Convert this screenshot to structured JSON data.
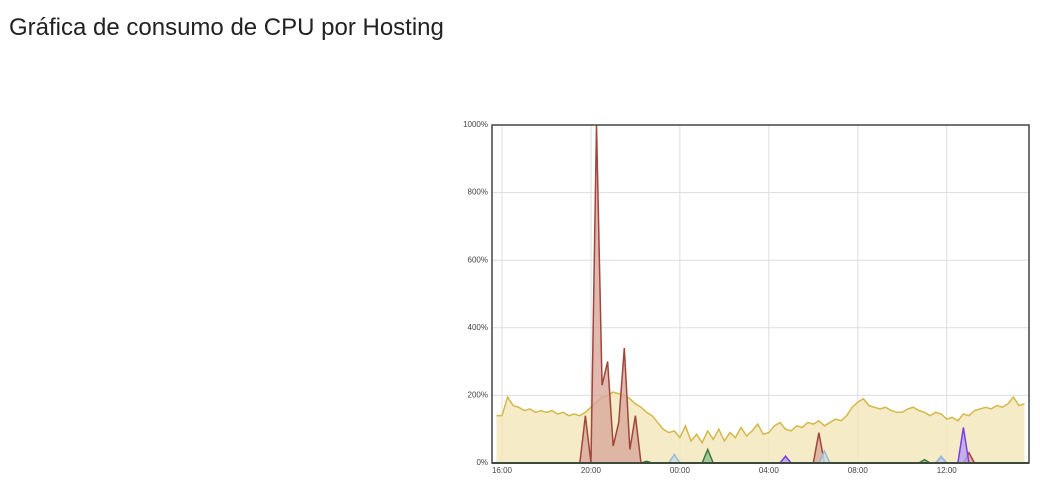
{
  "chart_data": {
    "type": "area",
    "title": "Gráfica de consumo de CPU por Hosting",
    "x": [
      15.75,
      16,
      16.25,
      16.5,
      16.75,
      17,
      17.25,
      17.5,
      17.75,
      18,
      18.25,
      18.5,
      18.75,
      19,
      19.25,
      19.5,
      19.75,
      20,
      20.25,
      20.5,
      20.75,
      21,
      21.25,
      21.5,
      21.75,
      22,
      22.25,
      22.5,
      22.75,
      23,
      23.25,
      23.5,
      23.75,
      24,
      24.25,
      24.5,
      24.75,
      25,
      25.25,
      25.5,
      25.75,
      26,
      26.25,
      26.5,
      26.75,
      27,
      27.25,
      27.5,
      27.75,
      28,
      28.25,
      28.5,
      28.75,
      29,
      29.25,
      29.5,
      29.75,
      30,
      30.25,
      30.5,
      30.75,
      31,
      31.25,
      31.5,
      31.75,
      32,
      32.25,
      32.5,
      32.75,
      33,
      33.25,
      33.5,
      33.75,
      34,
      34.25,
      34.5,
      34.75,
      35,
      35.25,
      35.5,
      35.75,
      36,
      36.25,
      36.5,
      36.75,
      37,
      37.25,
      37.5,
      37.75,
      38,
      38.25,
      38.5,
      38.75,
      39,
      39.25,
      39.5
    ],
    "xlim": [
      15.55,
      39.7
    ],
    "xticks": [
      {
        "value": 16,
        "label": "16:00"
      },
      {
        "value": 20,
        "label": "20:00"
      },
      {
        "value": 24,
        "label": "00:00"
      },
      {
        "value": 28,
        "label": "04:00"
      },
      {
        "value": 32,
        "label": "08:00"
      },
      {
        "value": 36,
        "label": "12:00"
      }
    ],
    "ylim": [
      0,
      1000
    ],
    "yticks": [
      {
        "value": 0,
        "label": "0%"
      },
      {
        "value": 200,
        "label": "200%"
      },
      {
        "value": 400,
        "label": "400%"
      },
      {
        "value": 600,
        "label": "600%"
      },
      {
        "value": 800,
        "label": "800%"
      },
      {
        "value": 1000,
        "label": "1000%"
      }
    ],
    "grid": true,
    "series": [
      {
        "color": "#d4b84a",
        "fill": "#f3e6b8",
        "values": [
          140,
          140,
          195,
          170,
          165,
          155,
          160,
          150,
          155,
          150,
          155,
          145,
          150,
          140,
          145,
          140,
          150,
          165,
          180,
          195,
          200,
          210,
          205,
          200,
          190,
          175,
          165,
          150,
          140,
          120,
          100,
          90,
          95,
          75,
          110,
          65,
          85,
          60,
          95,
          70,
          100,
          65,
          90,
          75,
          105,
          80,
          95,
          115,
          85,
          90,
          110,
          120,
          100,
          95,
          110,
          105,
          120,
          115,
          125,
          110,
          120,
          130,
          125,
          140,
          165,
          180,
          190,
          170,
          165,
          160,
          165,
          155,
          150,
          150,
          160,
          165,
          155,
          150,
          140,
          150,
          145,
          130,
          135,
          125,
          145,
          140,
          155,
          160,
          165,
          160,
          170,
          165,
          175,
          195,
          170,
          175
        ]
      },
      {
        "color": "#a0463c",
        "fill": "#d9a79a",
        "values": [
          0,
          0,
          0,
          0,
          0,
          0,
          0,
          0,
          0,
          0,
          0,
          0,
          0,
          0,
          0,
          0,
          140,
          0,
          1000,
          230,
          300,
          50,
          120,
          340,
          40,
          140,
          0,
          0,
          0,
          0,
          0,
          0,
          0,
          0,
          0,
          0,
          0,
          0,
          0,
          0,
          0,
          0,
          0,
          0,
          0,
          0,
          0,
          0,
          0,
          0,
          0,
          0,
          0,
          0,
          0,
          0,
          0,
          0,
          90,
          0,
          0,
          0,
          0,
          0,
          0,
          0,
          0,
          0,
          0,
          0,
          0,
          0,
          0,
          0,
          0,
          0,
          0,
          0,
          0,
          0,
          0,
          0,
          0,
          0,
          0,
          30,
          0,
          0,
          0,
          0,
          0,
          0,
          0,
          0,
          0,
          0
        ]
      },
      {
        "color": "#7b3fe4",
        "fill": "#b9a0f0",
        "values": [
          0,
          0,
          0,
          0,
          0,
          0,
          0,
          0,
          0,
          0,
          0,
          0,
          0,
          0,
          0,
          0,
          0,
          0,
          0,
          0,
          0,
          0,
          0,
          0,
          0,
          0,
          0,
          0,
          0,
          0,
          0,
          0,
          0,
          0,
          0,
          0,
          0,
          0,
          0,
          0,
          0,
          0,
          0,
          0,
          0,
          0,
          0,
          0,
          0,
          0,
          0,
          0,
          20,
          0,
          0,
          0,
          0,
          0,
          0,
          0,
          0,
          0,
          0,
          0,
          0,
          0,
          0,
          0,
          0,
          0,
          0,
          0,
          0,
          0,
          0,
          0,
          0,
          0,
          0,
          0,
          15,
          0,
          0,
          0,
          105,
          0,
          0,
          0,
          0,
          0,
          0,
          0,
          0,
          0,
          0,
          0
        ]
      },
      {
        "color": "#3c7a3c",
        "fill": "#8fbf8f",
        "values": [
          0,
          0,
          0,
          0,
          0,
          0,
          0,
          0,
          0,
          0,
          0,
          0,
          0,
          0,
          0,
          0,
          0,
          0,
          0,
          0,
          0,
          0,
          0,
          0,
          0,
          0,
          0,
          5,
          0,
          0,
          0,
          0,
          0,
          0,
          0,
          0,
          0,
          0,
          40,
          0,
          0,
          0,
          0,
          0,
          0,
          0,
          0,
          0,
          0,
          0,
          0,
          0,
          0,
          0,
          0,
          0,
          0,
          0,
          0,
          0,
          0,
          0,
          0,
          0,
          0,
          0,
          0,
          0,
          0,
          0,
          0,
          0,
          0,
          0,
          0,
          0,
          0,
          10,
          0,
          0,
          0,
          0,
          0,
          0,
          0,
          0,
          0,
          0,
          0,
          0,
          0,
          0,
          0,
          0,
          0,
          0
        ]
      },
      {
        "color": "#9ab8d0",
        "fill": "#c9dbe8",
        "values": [
          0,
          0,
          0,
          0,
          0,
          0,
          0,
          0,
          0,
          0,
          0,
          0,
          0,
          0,
          0,
          0,
          0,
          0,
          0,
          0,
          0,
          0,
          0,
          0,
          0,
          0,
          0,
          0,
          0,
          0,
          0,
          0,
          25,
          0,
          0,
          0,
          0,
          0,
          0,
          0,
          0,
          0,
          0,
          0,
          0,
          0,
          0,
          0,
          0,
          0,
          0,
          0,
          0,
          0,
          0,
          0,
          0,
          0,
          0,
          35,
          0,
          0,
          0,
          0,
          0,
          0,
          0,
          0,
          0,
          0,
          0,
          0,
          0,
          0,
          0,
          0,
          0,
          0,
          0,
          0,
          20,
          0,
          0,
          0,
          0,
          0,
          0,
          0,
          0,
          0,
          0,
          0,
          0,
          0,
          0,
          0
        ]
      }
    ]
  }
}
